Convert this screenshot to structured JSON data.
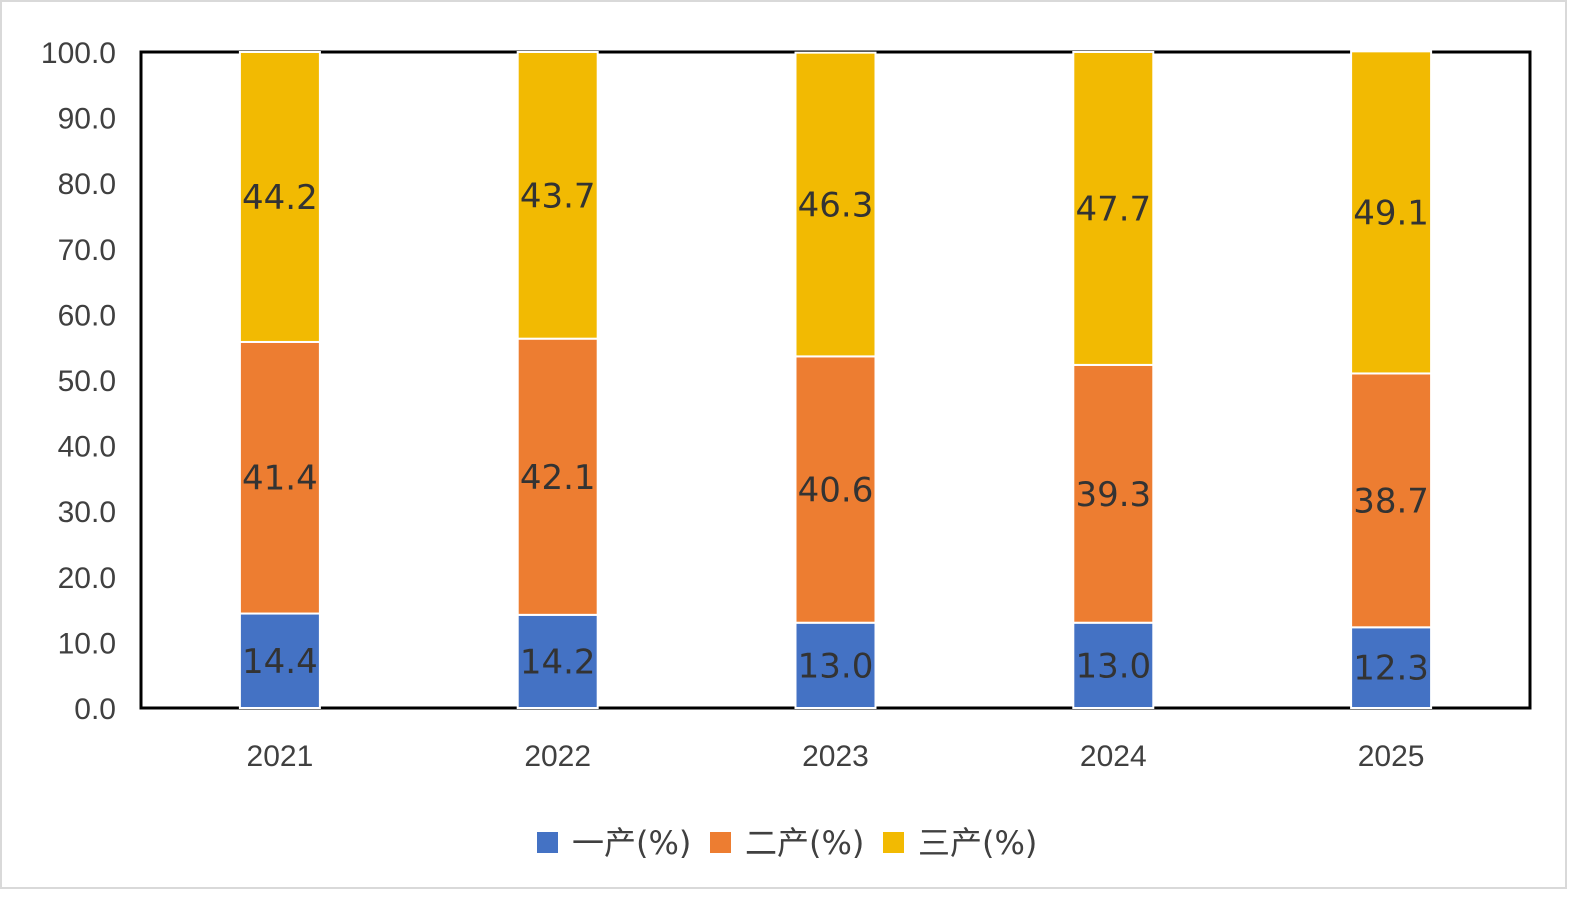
{
  "chart_data": {
    "type": "bar",
    "stacked": true,
    "title": "",
    "xlabel": "",
    "ylabel": "",
    "categories": [
      "2021",
      "2022",
      "2023",
      "2024",
      "2025"
    ],
    "ylim": [
      0,
      100
    ],
    "yticks": [
      "0.0",
      "10.0",
      "20.0",
      "30.0",
      "40.0",
      "50.0",
      "60.0",
      "70.0",
      "80.0",
      "90.0",
      "100.0"
    ],
    "grid": false,
    "legend_position": "bottom",
    "series": [
      {
        "name": "一产(%)",
        "color": "#4472C4",
        "values": [
          14.4,
          14.2,
          13.0,
          13.0,
          12.3
        ],
        "labels": [
          "14.4",
          "14.2",
          "13.0",
          "13.0",
          "12.3"
        ]
      },
      {
        "name": "二产(%)",
        "color": "#ED7D31",
        "values": [
          41.4,
          42.1,
          40.6,
          39.3,
          38.7
        ],
        "labels": [
          "41.4",
          "42.1",
          "40.6",
          "39.3",
          "38.7"
        ]
      },
      {
        "name": "三产(%)",
        "color": "#F2BA02",
        "values": [
          44.2,
          43.7,
          46.3,
          47.7,
          49.1
        ],
        "labels": [
          "44.2",
          "43.7",
          "46.3",
          "47.7",
          "49.1"
        ]
      }
    ]
  }
}
